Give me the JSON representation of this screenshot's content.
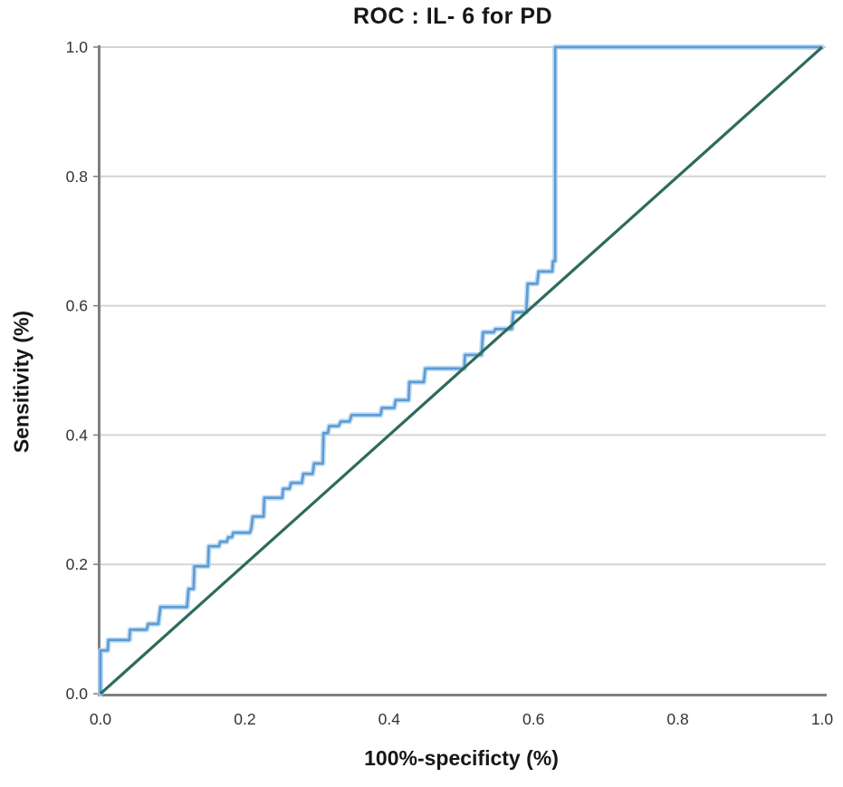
{
  "chart_data": {
    "type": "line",
    "title": "ROC : IL- 6 for PD",
    "xlabel": "100%-specificty (%)",
    "ylabel": "Sensitivity (%)",
    "xlim": [
      0,
      1
    ],
    "ylim": [
      0,
      1
    ],
    "grid": "horizontal-only",
    "legend": "none",
    "x_tick_labels": [
      "0.0",
      "0.2",
      "0.4",
      "0.6",
      "0.8",
      "1.0"
    ],
    "y_tick_labels": [
      "0.0",
      "0.2",
      "0.4",
      "0.6",
      "0.8",
      "1.0"
    ],
    "colors": {
      "curve_core": "#5b9bd5",
      "curve_halo": "#b3d2ef",
      "reference_line": "#2e6b5c",
      "gridline": "#d4d4d4",
      "axis": "#7f7f7f",
      "text": "#161616",
      "tick_text": "#333333"
    },
    "series": [
      {
        "name": "IL-6 ROC curve",
        "style": "step",
        "color": "#5b9bd5",
        "points": [
          [
            0.0,
            0.0
          ],
          [
            0.0,
            0.067
          ],
          [
            0.01,
            0.067
          ],
          [
            0.011,
            0.083
          ],
          [
            0.04,
            0.083
          ],
          [
            0.041,
            0.099
          ],
          [
            0.064,
            0.099
          ],
          [
            0.066,
            0.108
          ],
          [
            0.08,
            0.108
          ],
          [
            0.083,
            0.134
          ],
          [
            0.12,
            0.134
          ],
          [
            0.122,
            0.162
          ],
          [
            0.129,
            0.162
          ],
          [
            0.13,
            0.197
          ],
          [
            0.149,
            0.197
          ],
          [
            0.15,
            0.228
          ],
          [
            0.164,
            0.228
          ],
          [
            0.166,
            0.235
          ],
          [
            0.175,
            0.235
          ],
          [
            0.177,
            0.242
          ],
          [
            0.182,
            0.242
          ],
          [
            0.184,
            0.249
          ],
          [
            0.207,
            0.249
          ],
          [
            0.209,
            0.256
          ],
          [
            0.211,
            0.274
          ],
          [
            0.226,
            0.274
          ],
          [
            0.227,
            0.303
          ],
          [
            0.252,
            0.303
          ],
          [
            0.253,
            0.317
          ],
          [
            0.262,
            0.317
          ],
          [
            0.264,
            0.326
          ],
          [
            0.279,
            0.326
          ],
          [
            0.281,
            0.34
          ],
          [
            0.294,
            0.34
          ],
          [
            0.296,
            0.356
          ],
          [
            0.308,
            0.356
          ],
          [
            0.309,
            0.403
          ],
          [
            0.315,
            0.403
          ],
          [
            0.317,
            0.414
          ],
          [
            0.33,
            0.414
          ],
          [
            0.333,
            0.421
          ],
          [
            0.345,
            0.421
          ],
          [
            0.348,
            0.431
          ],
          [
            0.388,
            0.431
          ],
          [
            0.39,
            0.442
          ],
          [
            0.407,
            0.442
          ],
          [
            0.409,
            0.454
          ],
          [
            0.427,
            0.454
          ],
          [
            0.428,
            0.482
          ],
          [
            0.448,
            0.482
          ],
          [
            0.45,
            0.503
          ],
          [
            0.504,
            0.503
          ],
          [
            0.505,
            0.524
          ],
          [
            0.528,
            0.524
          ],
          [
            0.53,
            0.559
          ],
          [
            0.545,
            0.559
          ],
          [
            0.547,
            0.564
          ],
          [
            0.57,
            0.564
          ],
          [
            0.572,
            0.59
          ],
          [
            0.59,
            0.59
          ],
          [
            0.592,
            0.634
          ],
          [
            0.605,
            0.634
          ],
          [
            0.607,
            0.653
          ],
          [
            0.626,
            0.653
          ],
          [
            0.627,
            0.669
          ],
          [
            0.63,
            0.669
          ],
          [
            0.63,
            1.0
          ],
          [
            1.0,
            1.0
          ]
        ]
      },
      {
        "name": "Reference diagonal",
        "style": "line",
        "color": "#2e6b5c",
        "points": [
          [
            0,
            0
          ],
          [
            1,
            1
          ]
        ]
      }
    ]
  }
}
